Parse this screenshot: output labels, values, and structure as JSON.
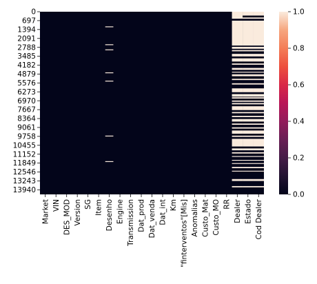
{
  "chart_data": {
    "type": "heatmap",
    "title": "",
    "xlabel": "",
    "ylabel": "",
    "columns": [
      "Market",
      "VIN",
      "DES_MOD",
      "Version",
      "SG",
      "Item",
      "Desenho",
      "Engine",
      "Transmission",
      "Dat_prod",
      "Dat_venda",
      "Dat_int",
      "Km",
      "\"finterventos\"[Mis]",
      "Anomalias",
      "Custo_Mat",
      "Custo_MO",
      "RR",
      "Dealer",
      "Estado",
      "Cod Dealer"
    ],
    "column_labels_shown": [
      "Market",
      "VIN",
      "DES_MOD",
      "Version",
      "SG",
      "Item",
      "Desenho",
      "Engine",
      "Transmission",
      "Dat_prod",
      "Dat_venda",
      "Dat_int",
      "Km",
      "\"finterventos\"[Mis]",
      "Anomalias",
      "Custo_Mat",
      "Custo_MO",
      "RR",
      "Dealer",
      "Estado",
      "Cod Dealer"
    ],
    "y_ticks": [
      0,
      697,
      1394,
      2091,
      2788,
      3485,
      4182,
      4879,
      5576,
      6273,
      6970,
      7667,
      8364,
      9061,
      9758,
      10455,
      11152,
      11849,
      12546,
      13243,
      13940
    ],
    "n_rows": 14300,
    "colorbar": {
      "ticks": [
        0.0,
        0.2,
        0.4,
        0.6,
        0.8,
        1.0
      ],
      "ylim": [
        0.0,
        1.0
      ]
    },
    "missing": {
      "Desenho": [
        [
          1150,
          1200
        ],
        [
          2550,
          2600
        ],
        [
          2950,
          3000
        ],
        [
          4750,
          4800
        ],
        [
          5400,
          5450
        ],
        [
          9700,
          9750
        ],
        [
          11700,
          11750
        ]
      ],
      "Dealer": [
        [
          0,
          550
        ],
        [
          700,
          2650
        ],
        [
          2750,
          2900
        ],
        [
          3000,
          3100
        ],
        [
          3300,
          3500
        ],
        [
          3650,
          3900
        ],
        [
          4050,
          4150
        ],
        [
          4400,
          4550
        ],
        [
          4700,
          4750
        ],
        [
          4900,
          5050
        ],
        [
          5250,
          5350
        ],
        [
          5600,
          5700
        ],
        [
          6000,
          6300
        ],
        [
          6450,
          6650
        ],
        [
          6700,
          6800
        ],
        [
          6950,
          7050
        ],
        [
          7150,
          7250
        ],
        [
          7400,
          7700
        ],
        [
          7850,
          7950
        ],
        [
          8150,
          8250
        ],
        [
          8400,
          8600
        ],
        [
          8750,
          8850
        ],
        [
          9050,
          9150
        ],
        [
          9300,
          9550
        ],
        [
          9700,
          9800
        ],
        [
          9950,
          10550
        ],
        [
          10700,
          10850
        ],
        [
          11000,
          11100
        ],
        [
          11300,
          11350
        ],
        [
          11600,
          11650
        ],
        [
          11850,
          11900
        ],
        [
          12150,
          12250
        ],
        [
          12450,
          12500
        ],
        [
          13100,
          13250
        ],
        [
          13650,
          13750
        ]
      ],
      "Estado": [
        [
          0,
          300
        ],
        [
          450,
          550
        ],
        [
          700,
          2650
        ],
        [
          2750,
          2900
        ],
        [
          3000,
          3100
        ],
        [
          3300,
          3500
        ],
        [
          3650,
          3900
        ],
        [
          4050,
          4150
        ],
        [
          4400,
          4550
        ],
        [
          4700,
          4750
        ],
        [
          4900,
          5050
        ],
        [
          5250,
          5350
        ],
        [
          5600,
          5700
        ],
        [
          6000,
          6300
        ],
        [
          6450,
          6650
        ],
        [
          6700,
          6800
        ],
        [
          6950,
          7050
        ],
        [
          7150,
          7250
        ],
        [
          7400,
          7700
        ],
        [
          7850,
          7950
        ],
        [
          8150,
          8250
        ],
        [
          8400,
          8600
        ],
        [
          8750,
          8850
        ],
        [
          9050,
          9150
        ],
        [
          9300,
          9550
        ],
        [
          9700,
          9800
        ],
        [
          9950,
          10550
        ],
        [
          10700,
          10850
        ],
        [
          11000,
          11100
        ],
        [
          11300,
          11350
        ],
        [
          11600,
          11650
        ],
        [
          11850,
          11900
        ],
        [
          12150,
          12250
        ],
        [
          12450,
          12500
        ],
        [
          13100,
          13250
        ],
        [
          13650,
          13750
        ]
      ],
      "Cod Dealer": [
        [
          0,
          300
        ],
        [
          450,
          550
        ],
        [
          700,
          2650
        ],
        [
          2750,
          2900
        ],
        [
          3000,
          3100
        ],
        [
          3300,
          3500
        ],
        [
          3650,
          3900
        ],
        [
          4050,
          4150
        ],
        [
          4400,
          4550
        ],
        [
          4700,
          4750
        ],
        [
          4900,
          5050
        ],
        [
          5250,
          5350
        ],
        [
          5600,
          5700
        ],
        [
          6000,
          6300
        ],
        [
          6450,
          6650
        ],
        [
          6700,
          6800
        ],
        [
          6950,
          7050
        ],
        [
          7150,
          7250
        ],
        [
          7400,
          7700
        ],
        [
          7850,
          7950
        ],
        [
          8150,
          8250
        ],
        [
          8400,
          8600
        ],
        [
          8750,
          8850
        ],
        [
          9050,
          9150
        ],
        [
          9300,
          9550
        ],
        [
          9700,
          9800
        ],
        [
          9950,
          10550
        ],
        [
          10700,
          10850
        ],
        [
          11000,
          11100
        ],
        [
          11300,
          11350
        ],
        [
          11600,
          11650
        ],
        [
          11850,
          11900
        ],
        [
          12150,
          12250
        ],
        [
          12450,
          12500
        ],
        [
          13100,
          13250
        ],
        [
          13650,
          13750
        ]
      ]
    },
    "colors": {
      "low": "#03051a",
      "high": "#faebdd"
    }
  }
}
